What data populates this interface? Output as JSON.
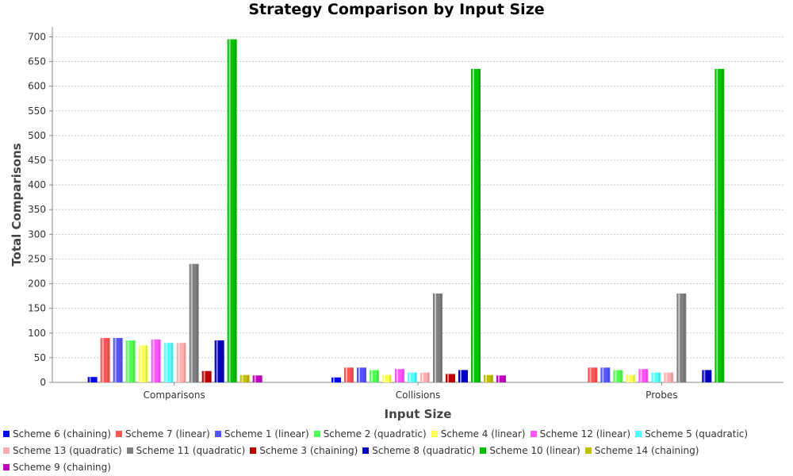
{
  "chart_data": {
    "type": "bar",
    "title": "Strategy Comparison by Input Size",
    "xlabel": "Input Size",
    "ylabel": "Total Comparisons",
    "ylim": [
      0,
      720
    ],
    "yticks": [
      0,
      50,
      100,
      150,
      200,
      250,
      300,
      350,
      400,
      450,
      500,
      550,
      600,
      650,
      700
    ],
    "grid": true,
    "legend_position": "bottom",
    "categories": [
      "Comparisons",
      "Collisions",
      "Probes"
    ],
    "series": [
      {
        "name": "Scheme 6 (chaining)",
        "color": "#0000ff",
        "values": [
          11,
          10,
          null
        ]
      },
      {
        "name": "Scheme 7 (linear)",
        "color": "#ff5555",
        "values": [
          90,
          30,
          30
        ]
      },
      {
        "name": "Scheme 1 (linear)",
        "color": "#5555ff",
        "values": [
          90,
          30,
          30
        ]
      },
      {
        "name": "Scheme 2 (quadratic)",
        "color": "#55ff55",
        "values": [
          85,
          25,
          25
        ]
      },
      {
        "name": "Scheme 4 (linear)",
        "color": "#ffff55",
        "values": [
          75,
          15,
          15
        ]
      },
      {
        "name": "Scheme 12 (linear)",
        "color": "#ff55ff",
        "values": [
          87,
          27,
          27
        ]
      },
      {
        "name": "Scheme 5 (quadratic)",
        "color": "#55ffff",
        "values": [
          80,
          20,
          20
        ]
      },
      {
        "name": "Scheme 13 (quadratic)",
        "color": "#ffafaf",
        "values": [
          80,
          20,
          20
        ]
      },
      {
        "name": "Scheme 11 (quadratic)",
        "color": "#808080",
        "values": [
          240,
          180,
          180
        ]
      },
      {
        "name": "Scheme 3 (chaining)",
        "color": "#c00000",
        "values": [
          23,
          17,
          null
        ]
      },
      {
        "name": "Scheme 8 (quadratic)",
        "color": "#0000c0",
        "values": [
          85,
          25,
          25
        ]
      },
      {
        "name": "Scheme 10 (linear)",
        "color": "#00c000",
        "values": [
          695,
          635,
          635
        ]
      },
      {
        "name": "Scheme 14 (chaining)",
        "color": "#c0c000",
        "values": [
          15,
          15,
          null
        ]
      },
      {
        "name": "Scheme 9 (chaining)",
        "color": "#c000c0",
        "values": [
          14,
          14,
          null
        ]
      }
    ]
  }
}
